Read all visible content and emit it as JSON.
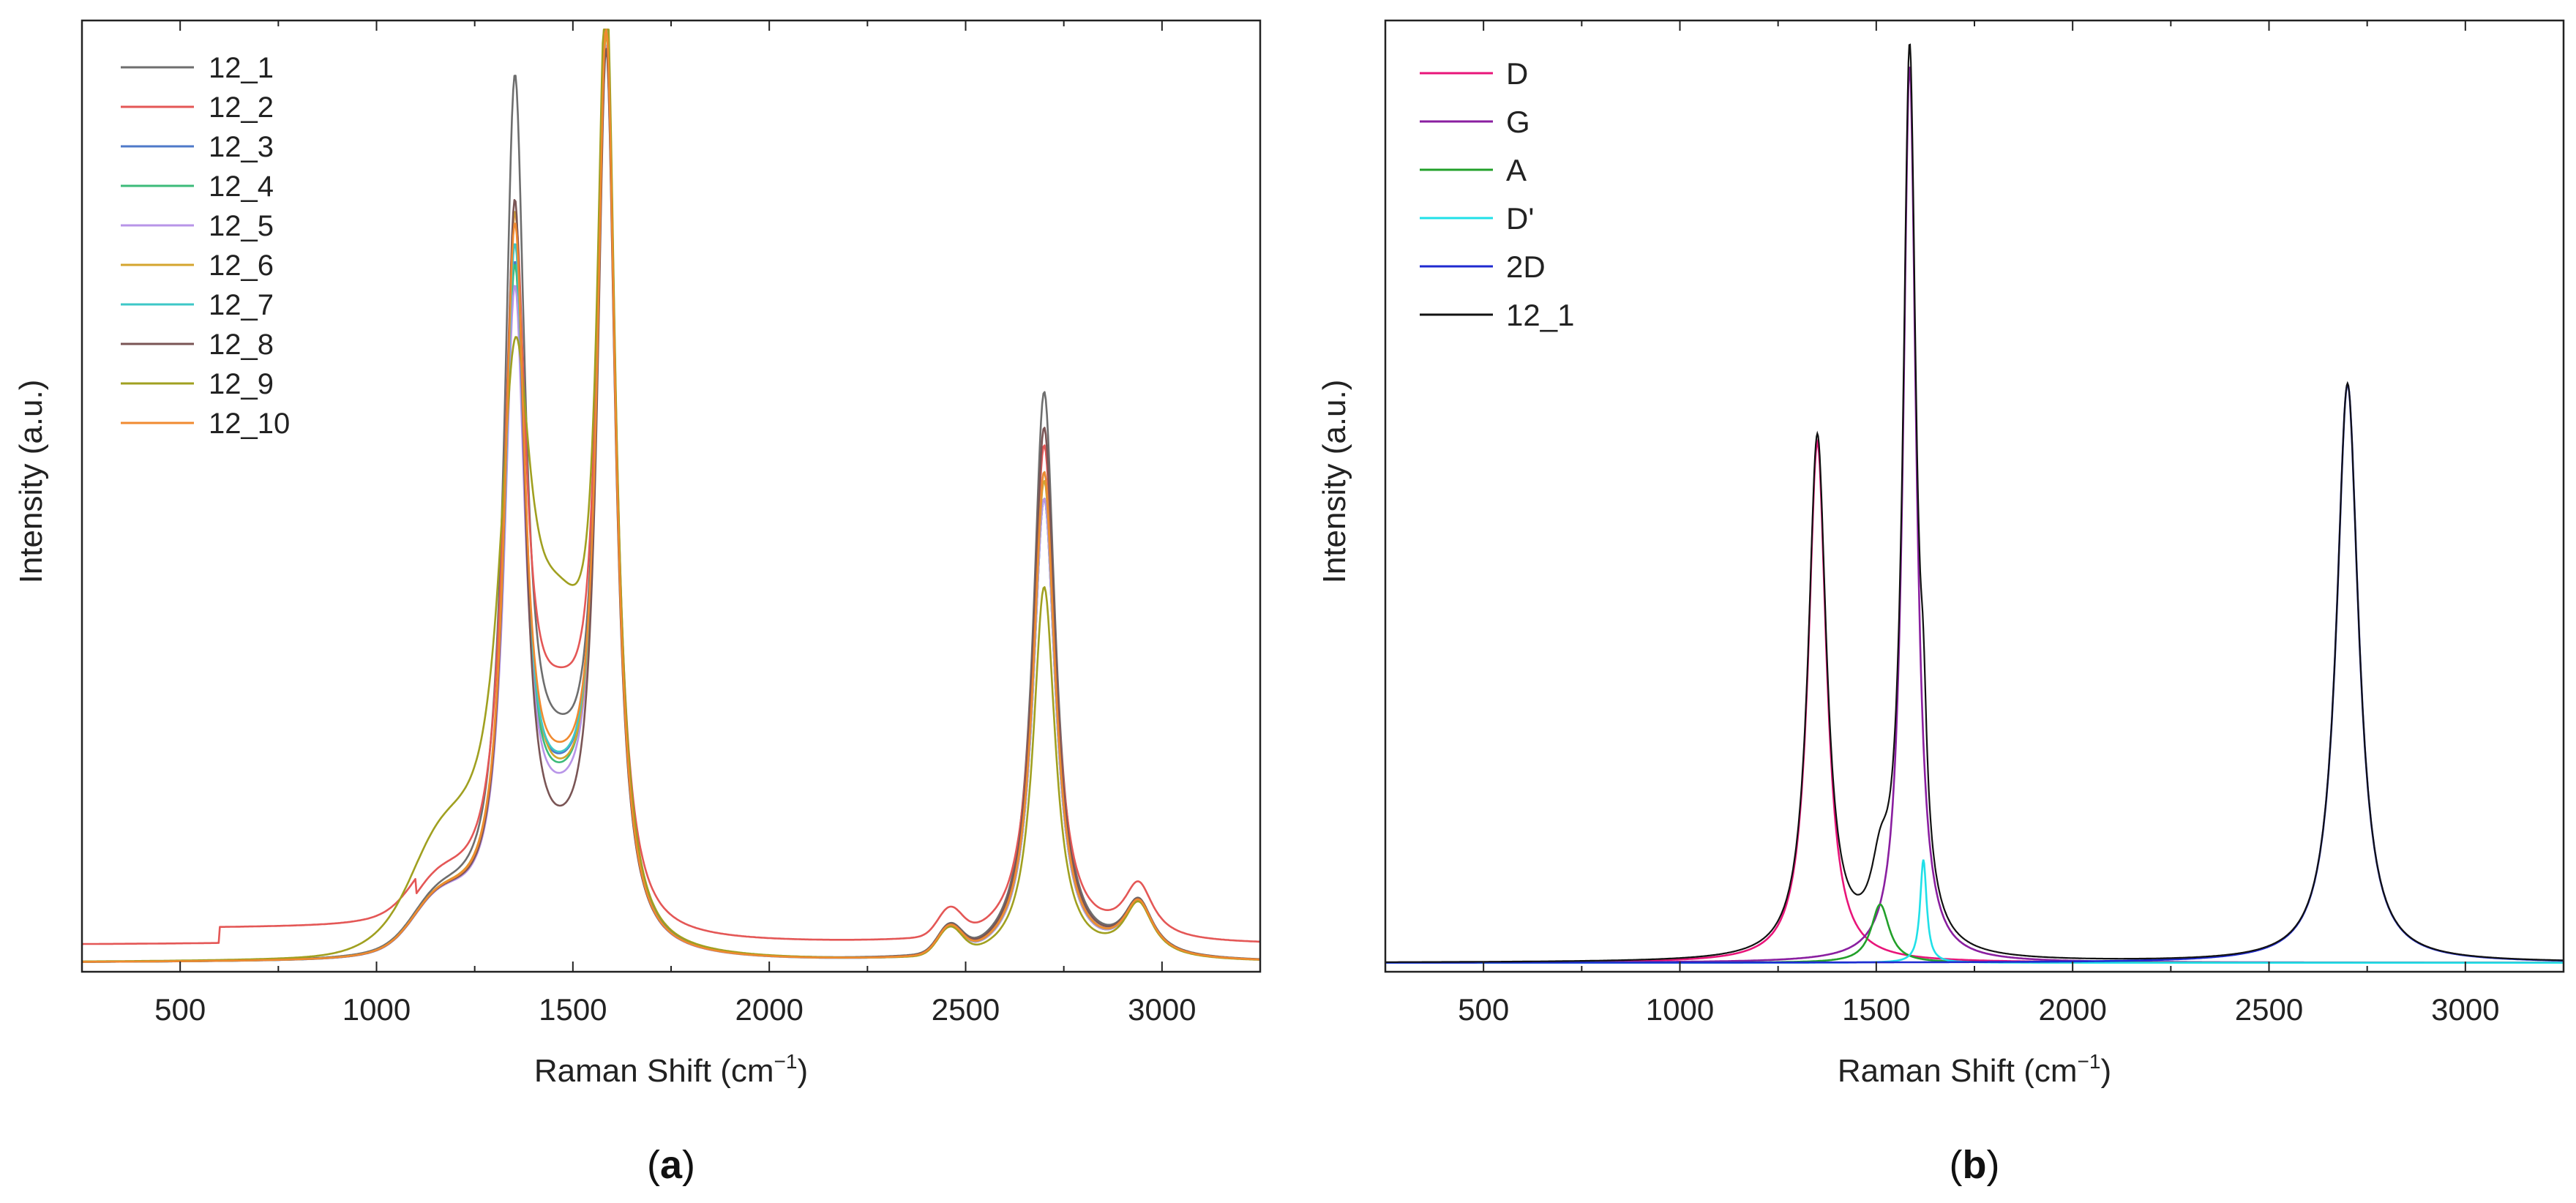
{
  "chart_data": [
    {
      "panel": "a",
      "panel_label": "(a)",
      "type": "line",
      "xlabel": "Raman Shift (cm",
      "xlabel_sup": "−1",
      "xlabel_tail": ")",
      "ylabel": "Intensity (a.u.)",
      "xlim": [
        250,
        3250
      ],
      "ylim": [
        0,
        1.05
      ],
      "xticks": [
        500,
        1000,
        1500,
        2000,
        2500,
        3000
      ],
      "xtick_labels": [
        "500",
        "1000",
        "1500",
        "2000",
        "2500",
        "3000"
      ],
      "yticks": [],
      "legend_position": "top-left",
      "series": [
        {
          "name": "12_1",
          "color": "#6e6e6e",
          "D": 0.92,
          "G": 1.0,
          "twoD": 0.64,
          "base": 0.01,
          "valley": 0.16,
          "gs": 0.0,
          "wD": 58,
          "extra": [
            [
              3000,
              0.0,
              1
            ]
          ]
        },
        {
          "name": "12_2",
          "color": "#e45756",
          "D": 0.73,
          "G": 0.98,
          "twoD": 0.56,
          "base": 0.03,
          "valley": 0.2,
          "gs": 0.03,
          "wD": 62,
          "extra": []
        },
        {
          "name": "12_3",
          "color": "#4e79c9",
          "D": 0.72,
          "G": 0.99,
          "twoD": 0.52,
          "base": 0.01,
          "valley": 0.13,
          "gs": 0.0,
          "wD": 58,
          "extra": []
        },
        {
          "name": "12_4",
          "color": "#3dbb7a",
          "D": 0.72,
          "G": 0.99,
          "twoD": 0.52,
          "base": 0.01,
          "valley": 0.12,
          "gs": 0.0,
          "wD": 58,
          "extra": []
        },
        {
          "name": "12_5",
          "color": "#b895e8",
          "D": 0.7,
          "G": 0.98,
          "twoD": 0.52,
          "base": 0.01,
          "valley": 0.11,
          "gs": 0.0,
          "wD": 58,
          "extra": []
        },
        {
          "name": "12_6",
          "color": "#d4a52e",
          "D": 0.78,
          "G": 0.99,
          "twoD": 0.54,
          "base": 0.01,
          "valley": 0.12,
          "gs": 0.0,
          "wD": 58,
          "extra": []
        },
        {
          "name": "12_7",
          "color": "#3ec7c7",
          "D": 0.74,
          "G": 1.0,
          "twoD": 0.55,
          "base": 0.01,
          "valley": 0.13,
          "gs": 0.0,
          "wD": 58,
          "extra": []
        },
        {
          "name": "12_8",
          "color": "#7a5555",
          "D": 0.81,
          "G": 0.99,
          "twoD": 0.6,
          "base": 0.01,
          "valley": 0.07,
          "gs": 0.0,
          "wD": 55,
          "extra": []
        },
        {
          "name": "12_9",
          "color": "#a0a020",
          "D": 0.55,
          "G": 0.98,
          "twoD": 0.42,
          "base": 0.01,
          "valley": 0.29,
          "gs": 0.0,
          "wD": 90,
          "extra": []
        },
        {
          "name": "12_10",
          "color": "#f08a30",
          "D": 0.76,
          "G": 0.99,
          "twoD": 0.55,
          "base": 0.01,
          "valley": 0.14,
          "gs": 0.0,
          "wD": 58,
          "extra": []
        }
      ]
    },
    {
      "panel": "b",
      "panel_label": "(b)",
      "type": "line",
      "xlabel": "Raman Shift (cm",
      "xlabel_sup": "−1",
      "xlabel_tail": ")",
      "ylabel": "Intensity (a.u.)",
      "xlim": [
        250,
        3250
      ],
      "ylim": [
        0,
        1.06
      ],
      "xticks": [
        500,
        1000,
        1500,
        2000,
        2500,
        3000
      ],
      "xtick_labels": [
        "500",
        "1000",
        "1500",
        "2000",
        "2500",
        "3000"
      ],
      "yticks": [],
      "legend_position": "top-left",
      "series": [
        {
          "name": "D",
          "color": "#e8157a",
          "center": 1350,
          "amp": 0.58,
          "width": 28
        },
        {
          "name": "G",
          "color": "#8a1fa0",
          "center": 1585,
          "amp": 1.0,
          "width": 20
        },
        {
          "name": "A",
          "color": "#22a02a",
          "center": 1510,
          "amp": 0.065,
          "width": 28
        },
        {
          "name": "D'",
          "color": "#20e0e8",
          "center": 1620,
          "amp": 0.115,
          "width": 10
        },
        {
          "name": "2D",
          "color": "#1f2ad0",
          "center": 2700,
          "amp": 0.645,
          "width": 34
        },
        {
          "name": "12_1",
          "color": "#111111",
          "sum": true
        }
      ]
    }
  ]
}
